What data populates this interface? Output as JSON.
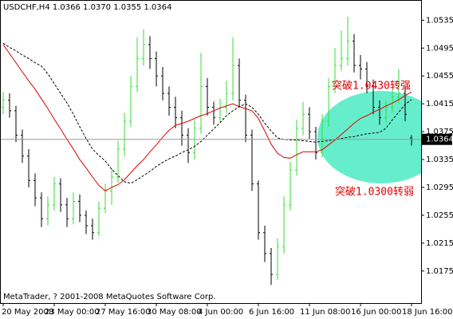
{
  "chart_data": {
    "type": "ohlc",
    "title": "USDCHF,H4  1.0366 1.0370 1.0355 1.0364",
    "footer": "MetaTrader, ? 2001-2008 MetaQuotes Software Corp.",
    "annotations": [
      "突破1.0430转强",
      "突破1.0300转弱"
    ],
    "categories": [
      "20 May 2008",
      null,
      null,
      null,
      null,
      null,
      null,
      null,
      "23 May 00:00",
      null,
      null,
      null,
      null,
      null,
      null,
      null,
      "27 May 16:00",
      null,
      null,
      null,
      null,
      null,
      null,
      null,
      "30 May 08:00",
      null,
      null,
      null,
      null,
      null,
      null,
      null,
      "4 Jun 00:00",
      null,
      null,
      null,
      null,
      null,
      null,
      null,
      "6 Jun 16:00",
      null,
      null,
      null,
      null,
      null,
      null,
      null,
      "11 Jun 08:00",
      null,
      null,
      null,
      null,
      null,
      null,
      null,
      "16 Jun 00:00",
      null,
      null,
      null,
      null,
      null,
      null,
      null,
      "18 Jun 16:00"
    ],
    "open": [
      1.041,
      1.042,
      1.0405,
      1.037,
      1.034,
      1.0305,
      1.028,
      1.025,
      1.027,
      1.03,
      1.027,
      1.025,
      1.0275,
      1.0255,
      1.024,
      1.023,
      1.0265,
      1.029,
      1.031,
      1.035,
      1.039,
      1.044,
      1.048,
      1.05,
      1.048,
      1.0455,
      1.043,
      1.041,
      1.0395,
      1.037,
      1.0345,
      1.038,
      1.044,
      1.041,
      1.0395,
      1.041,
      1.043,
      1.047,
      1.042,
      1.037,
      1.03,
      1.023,
      1.02,
      1.017,
      1.021,
      1.027,
      1.032,
      1.038,
      1.04,
      1.0375,
      1.0345,
      1.039,
      1.044,
      1.047,
      1.048,
      1.0505,
      1.047,
      1.0465,
      1.044,
      1.041,
      1.0395,
      1.041,
      1.0425,
      1.043,
      1.0366
    ],
    "high": [
      1.0432,
      1.043,
      1.0412,
      1.0378,
      1.035,
      1.0315,
      1.0288,
      1.0282,
      1.031,
      1.0308,
      1.028,
      1.0288,
      1.0285,
      1.0262,
      1.025,
      1.0275,
      1.03,
      1.0322,
      1.0362,
      1.0402,
      1.0455,
      1.051,
      1.0522,
      1.0512,
      1.049,
      1.0468,
      1.044,
      1.0425,
      1.0405,
      1.038,
      1.0392,
      1.0488,
      1.0452,
      1.0418,
      1.0422,
      1.0448,
      1.051,
      1.048,
      1.0428,
      1.0378,
      1.0305,
      1.024,
      1.0208,
      1.0222,
      1.0282,
      1.0332,
      1.0392,
      1.0418,
      1.041,
      1.0382,
      1.04,
      1.0452,
      1.0495,
      1.052,
      1.054,
      1.0515,
      1.0485,
      1.0475,
      1.045,
      1.042,
      1.042,
      1.0435,
      1.0465,
      1.044,
      1.037
    ],
    "low": [
      1.04,
      1.0395,
      1.036,
      1.033,
      1.0295,
      1.0268,
      1.0238,
      1.024,
      1.0262,
      1.026,
      1.0238,
      1.0242,
      1.0245,
      1.0228,
      1.022,
      1.0225,
      1.0258,
      1.027,
      1.0302,
      1.034,
      1.0382,
      1.0432,
      1.047,
      1.0465,
      1.044,
      1.042,
      1.0398,
      1.038,
      1.0355,
      1.033,
      1.0335,
      1.0372,
      1.0398,
      1.0385,
      1.0388,
      1.0402,
      1.042,
      1.041,
      1.036,
      1.029,
      1.022,
      1.0188,
      1.0155,
      1.0162,
      1.02,
      1.0262,
      1.0312,
      1.037,
      1.0365,
      1.0335,
      1.0338,
      1.0382,
      1.043,
      1.0462,
      1.047,
      1.046,
      1.045,
      1.043,
      1.04,
      1.0385,
      1.0388,
      1.0402,
      1.0415,
      1.039,
      1.0355
    ],
    "close": [
      1.042,
      1.0405,
      1.037,
      1.034,
      1.0305,
      1.028,
      1.025,
      1.027,
      1.03,
      1.027,
      1.025,
      1.0275,
      1.0255,
      1.024,
      1.023,
      1.0265,
      1.029,
      1.031,
      1.035,
      1.039,
      1.044,
      1.048,
      1.05,
      1.048,
      1.0455,
      1.043,
      1.041,
      1.0395,
      1.037,
      1.0345,
      1.038,
      1.044,
      1.041,
      1.0395,
      1.041,
      1.043,
      1.047,
      1.042,
      1.037,
      1.03,
      1.023,
      1.02,
      1.017,
      1.021,
      1.027,
      1.032,
      1.038,
      1.04,
      1.0375,
      1.0345,
      1.039,
      1.044,
      1.047,
      1.048,
      1.0505,
      1.047,
      1.0465,
      1.044,
      1.041,
      1.0395,
      1.041,
      1.0425,
      1.043,
      1.04,
      1.0364
    ],
    "up_color": "#33dd33",
    "down_color": "#000000",
    "moving_averages": [
      {
        "color": "#e00000",
        "dashed": false,
        "values": [
          1.05,
          1.0487,
          1.0474,
          1.0461,
          1.0448,
          1.0436,
          1.0422,
          1.0408,
          1.0393,
          1.0379,
          1.0364,
          1.035,
          1.0335,
          1.0323,
          1.031,
          1.0298,
          1.029,
          1.0295,
          1.0299,
          1.0306,
          1.0316,
          1.0326,
          1.0335,
          1.0346,
          1.0356,
          1.0367,
          1.0377,
          1.0384,
          1.0387,
          1.039,
          1.0394,
          1.0398,
          1.0401,
          1.0405,
          1.0409,
          1.0412,
          1.0415,
          1.0411,
          1.0408,
          1.0405,
          1.0394,
          1.0376,
          1.0357,
          1.0344,
          1.0338,
          1.0337,
          1.0342,
          1.0346,
          1.0346,
          1.0346,
          1.0349,
          1.0356,
          1.0363,
          1.0371,
          1.0379,
          1.0387,
          1.0394,
          1.0398,
          1.0403,
          1.0407,
          1.0412,
          1.0416,
          1.0421,
          1.0427,
          1.0432
        ]
      },
      {
        "color": "#000000",
        "dashed": true,
        "values": [
          1.0502,
          1.0496,
          1.0491,
          1.0485,
          1.048,
          1.0474,
          1.0469,
          1.0458,
          1.0444,
          1.043,
          1.0416,
          1.04,
          1.0382,
          1.0365,
          1.035,
          1.0341,
          1.0333,
          1.0321,
          1.0312,
          1.0303,
          1.0301,
          1.0306,
          1.0312,
          1.0318,
          1.0325,
          1.0331,
          1.0336,
          1.034,
          1.0345,
          1.0349,
          1.0354,
          1.0361,
          1.037,
          1.0379,
          1.0388,
          1.0398,
          1.0405,
          1.0411,
          1.0415,
          1.041,
          1.04,
          1.0387,
          1.0376,
          1.0366,
          1.0364,
          1.0363,
          1.0363,
          1.0362,
          1.0361,
          1.036,
          1.0361,
          1.0362,
          1.0364,
          1.0365,
          1.0367,
          1.0368,
          1.037,
          1.0372,
          1.0373,
          1.0374,
          1.038,
          1.0392,
          1.0403,
          1.0414,
          1.0421
        ]
      }
    ],
    "current_price": 1.0364,
    "ylim": [
      1.0129,
      1.0564
    ],
    "yticks": [
      1.0535,
      1.0495,
      1.0455,
      1.0415,
      1.0375,
      1.0335,
      1.0295,
      1.0255,
      1.0215,
      1.0175
    ]
  }
}
